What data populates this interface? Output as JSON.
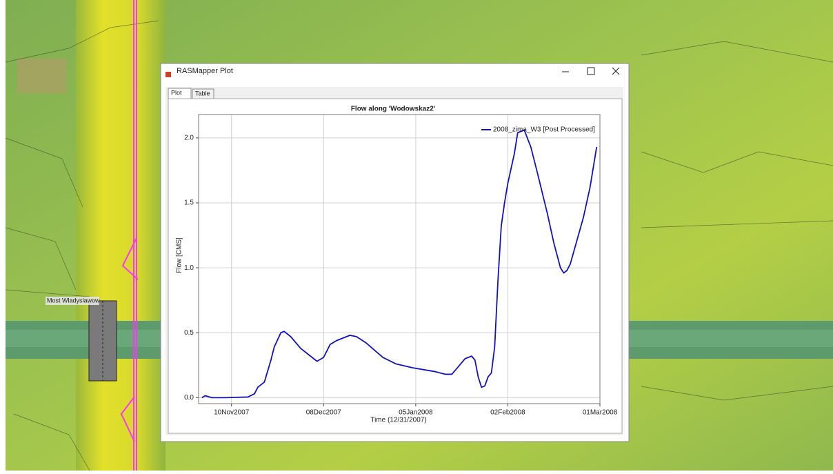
{
  "map": {
    "label": "Most Wladyslawow"
  },
  "window": {
    "title": "RASMapper Plot",
    "tabs": [
      "Plot",
      "Table"
    ]
  },
  "chart_data": {
    "type": "line",
    "title": "Flow along 'Wodowskaz2'",
    "x_label": "Time (12/31/2007)",
    "y_label": "Flow [CMS]",
    "x": [
      "2007-11-01",
      "2007-11-02",
      "2007-11-04",
      "2007-11-08",
      "2007-11-15",
      "2007-11-17",
      "2007-11-18",
      "2007-11-20",
      "2007-11-22",
      "2007-11-23",
      "2007-11-25",
      "2007-11-26",
      "2007-11-28",
      "2007-12-01",
      "2007-12-05",
      "2007-12-06",
      "2007-12-08",
      "2007-12-10",
      "2007-12-12",
      "2007-12-16",
      "2007-12-18",
      "2007-12-21",
      "2007-12-26",
      "2007-12-30",
      "2008-01-04",
      "2008-01-11",
      "2008-01-14",
      "2008-01-16",
      "2008-01-18",
      "2008-01-20",
      "2008-01-22",
      "2008-01-23",
      "2008-01-24",
      "2008-01-25",
      "2008-01-26",
      "2008-01-27",
      "2008-01-28",
      "2008-01-29",
      "2008-01-30",
      "2008-01-31",
      "2008-02-01",
      "2008-02-02",
      "2008-02-04",
      "2008-02-05",
      "2008-02-07",
      "2008-02-09",
      "2008-02-11",
      "2008-02-14",
      "2008-02-16",
      "2008-02-18",
      "2008-02-19",
      "2008-02-20",
      "2008-02-21",
      "2008-02-23",
      "2008-02-25",
      "2008-02-27",
      "2008-02-29"
    ],
    "series": [
      {
        "name": "2008_zima_W3 [Post Processed]",
        "color": "#1010c8",
        "values": [
          0.0,
          0.015,
          0.0,
          0.0,
          0.005,
          0.03,
          0.08,
          0.12,
          0.29,
          0.39,
          0.5,
          0.51,
          0.47,
          0.38,
          0.3,
          0.28,
          0.31,
          0.41,
          0.44,
          0.48,
          0.47,
          0.42,
          0.31,
          0.26,
          0.23,
          0.2,
          0.18,
          0.18,
          0.24,
          0.3,
          0.32,
          0.29,
          0.16,
          0.08,
          0.09,
          0.16,
          0.19,
          0.39,
          0.9,
          1.32,
          1.5,
          1.65,
          1.88,
          2.04,
          2.06,
          1.93,
          1.73,
          1.42,
          1.19,
          1.0,
          0.96,
          0.98,
          1.03,
          1.21,
          1.39,
          1.62,
          1.93
        ]
      }
    ],
    "xlim": [
      "2007-10-31",
      "2008-03-01"
    ],
    "xticks": [
      {
        "value": "2007-11-10",
        "label": "10Nov2007"
      },
      {
        "value": "2007-12-08",
        "label": "08Dec2007"
      },
      {
        "value": "2008-01-05",
        "label": "05Jan2008"
      },
      {
        "value": "2008-02-02",
        "label": "02Feb2008"
      },
      {
        "value": "2008-03-01",
        "label": "01Mar2008"
      }
    ],
    "ylim": [
      -0.046,
      2.18
    ],
    "yticks": [
      {
        "value": 0,
        "label": "0.0"
      },
      0.5,
      {
        "value": 1,
        "label": "1.0"
      },
      1.5,
      {
        "value": 2,
        "label": "2.0"
      }
    ],
    "grid": true,
    "legend": "upper right"
  }
}
